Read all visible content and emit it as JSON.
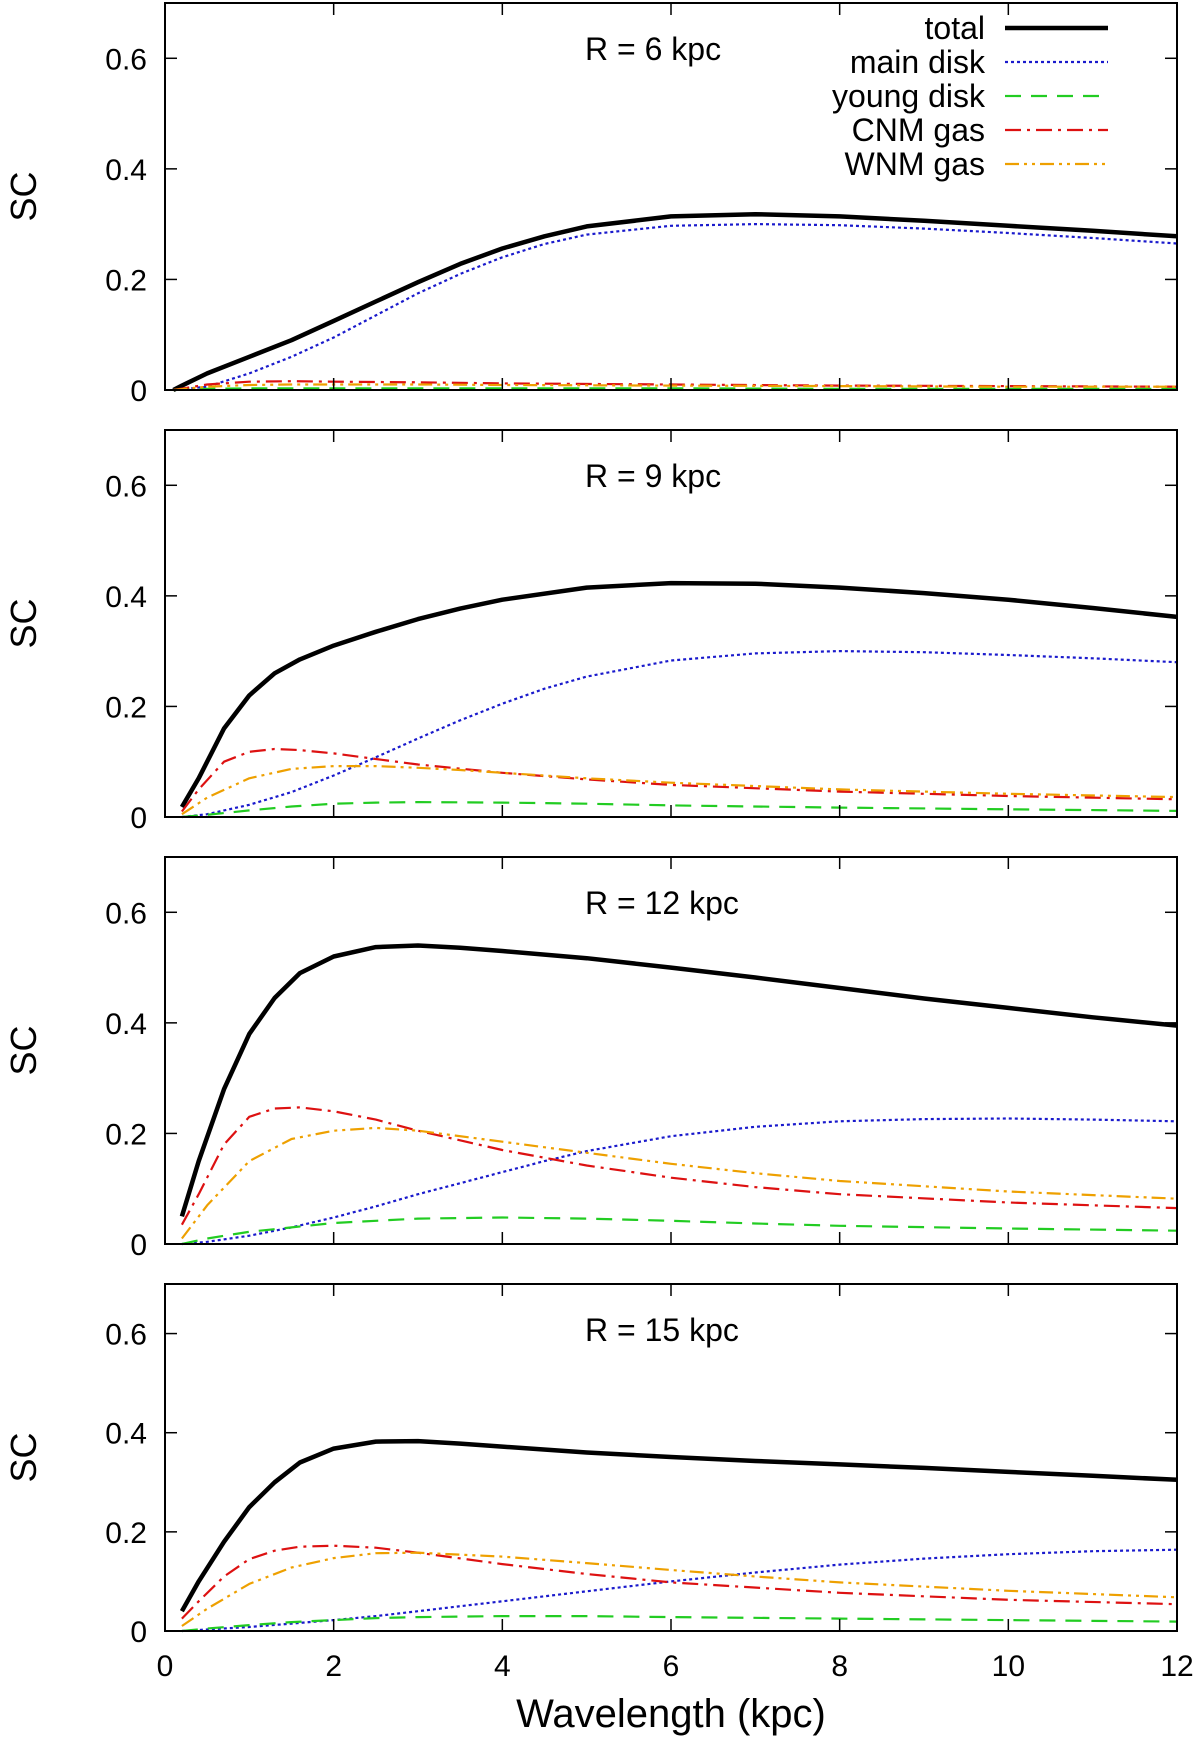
{
  "chart_data": {
    "type": "line",
    "layout": "4 stacked panels sharing x-axis",
    "xlabel": "Wavelength (kpc)",
    "ylabel": "SC",
    "xlim": [
      0,
      12
    ],
    "ylim": [
      0,
      0.7
    ],
    "x_ticks": [
      "0",
      "2",
      "4",
      "6",
      "8",
      "10",
      "12"
    ],
    "y_ticks": [
      "0",
      "0.2",
      "0.4",
      "0.6"
    ],
    "legend": {
      "placement": "top-right of first panel",
      "entries": [
        {
          "key": "total",
          "label": "total",
          "color": "#000000",
          "style": "solid-thick"
        },
        {
          "key": "main",
          "label": "main disk",
          "color": "#1a1acc",
          "style": "dotted"
        },
        {
          "key": "young",
          "label": "young disk",
          "color": "#22cc22",
          "style": "dashed"
        },
        {
          "key": "cnm",
          "label": "CNM gas",
          "color": "#dd1111",
          "style": "dash-dot"
        },
        {
          "key": "wnm",
          "label": "WNM gas",
          "color": "#eea000",
          "style": "dash-dot-dot"
        }
      ]
    },
    "panels": [
      {
        "title": "R = 6 kpc",
        "series": [
          {
            "key": "total",
            "x": [
              0.1,
              0.2,
              0.5,
              1,
              1.5,
              2,
              2.5,
              3,
              3.5,
              4,
              4.5,
              5,
              6,
              7,
              8,
              9,
              10,
              11,
              12
            ],
            "y": [
              0,
              0.008,
              0.03,
              0.06,
              0.09,
              0.125,
              0.16,
              0.195,
              0.228,
              0.256,
              0.278,
              0.296,
              0.314,
              0.318,
              0.314,
              0.306,
              0.297,
              0.288,
              0.278
            ]
          },
          {
            "key": "main",
            "x": [
              0.1,
              0.5,
              1,
              1.5,
              2,
              2.5,
              3,
              3.5,
              4,
              4.5,
              5,
              6,
              7,
              8,
              9,
              10,
              11,
              12
            ],
            "y": [
              0,
              0.006,
              0.03,
              0.06,
              0.095,
              0.135,
              0.175,
              0.21,
              0.24,
              0.264,
              0.281,
              0.297,
              0.3,
              0.298,
              0.292,
              0.284,
              0.275,
              0.265
            ]
          },
          {
            "key": "young",
            "x": [
              0.1,
              0.5,
              1,
              2,
              3,
              4,
              6,
              8,
              10,
              12
            ],
            "y": [
              0,
              0.002,
              0.003,
              0.003,
              0.003,
              0.003,
              0.003,
              0.002,
              0.002,
              0.002
            ]
          },
          {
            "key": "cnm",
            "x": [
              0.1,
              0.5,
              1,
              1.5,
              2,
              3,
              4,
              6,
              8,
              10,
              12
            ],
            "y": [
              0,
              0.01,
              0.015,
              0.016,
              0.015,
              0.014,
              0.012,
              0.01,
              0.008,
              0.007,
              0.006
            ]
          },
          {
            "key": "wnm",
            "x": [
              0.1,
              0.5,
              1,
              1.5,
              2,
              3,
              4,
              6,
              8,
              10,
              12
            ],
            "y": [
              0,
              0.006,
              0.009,
              0.01,
              0.01,
              0.01,
              0.009,
              0.008,
              0.007,
              0.006,
              0.006
            ]
          }
        ]
      },
      {
        "title": "R = 9 kpc",
        "series": [
          {
            "key": "total",
            "x": [
              0.2,
              0.4,
              0.7,
              1,
              1.3,
              1.6,
              2,
              2.5,
              3,
              3.5,
              4,
              5,
              6,
              7,
              8,
              9,
              10,
              11,
              12
            ],
            "y": [
              0.018,
              0.07,
              0.16,
              0.22,
              0.26,
              0.285,
              0.31,
              0.335,
              0.358,
              0.377,
              0.393,
              0.415,
              0.423,
              0.422,
              0.415,
              0.405,
              0.393,
              0.378,
              0.362
            ]
          },
          {
            "key": "main",
            "x": [
              0.2,
              0.5,
              1,
              1.5,
              2,
              2.5,
              3,
              3.5,
              4,
              4.5,
              5,
              6,
              7,
              8,
              9,
              10,
              11,
              12
            ],
            "y": [
              0,
              0.005,
              0.022,
              0.045,
              0.075,
              0.108,
              0.142,
              0.175,
              0.205,
              0.232,
              0.254,
              0.283,
              0.296,
              0.3,
              0.298,
              0.293,
              0.287,
              0.28
            ]
          },
          {
            "key": "young",
            "x": [
              0.2,
              0.5,
              1,
              1.5,
              2,
              2.5,
              3,
              4,
              5,
              6,
              8,
              10,
              12
            ],
            "y": [
              0,
              0.004,
              0.012,
              0.019,
              0.024,
              0.026,
              0.027,
              0.026,
              0.024,
              0.021,
              0.017,
              0.014,
              0.011
            ]
          },
          {
            "key": "cnm",
            "x": [
              0.2,
              0.4,
              0.7,
              1,
              1.3,
              1.6,
              2,
              2.5,
              3,
              4,
              5,
              6,
              8,
              10,
              12
            ],
            "y": [
              0.01,
              0.05,
              0.1,
              0.118,
              0.123,
              0.121,
              0.115,
              0.105,
              0.095,
              0.08,
              0.068,
              0.058,
              0.046,
              0.038,
              0.032
            ]
          },
          {
            "key": "wnm",
            "x": [
              0.2,
              0.5,
              1,
              1.5,
              2,
              2.5,
              3,
              3.5,
              4,
              5,
              6,
              8,
              10,
              12
            ],
            "y": [
              0.005,
              0.035,
              0.07,
              0.087,
              0.092,
              0.092,
              0.089,
              0.085,
              0.08,
              0.07,
              0.062,
              0.05,
              0.042,
              0.036
            ]
          }
        ]
      },
      {
        "title": "R = 12 kpc",
        "series": [
          {
            "key": "total",
            "x": [
              0.2,
              0.4,
              0.7,
              1,
              1.3,
              1.6,
              2,
              2.5,
              3,
              3.5,
              4,
              5,
              6,
              7,
              8,
              9,
              10,
              11,
              12
            ],
            "y": [
              0.05,
              0.15,
              0.28,
              0.38,
              0.445,
              0.49,
              0.52,
              0.537,
              0.54,
              0.536,
              0.53,
              0.517,
              0.5,
              0.482,
              0.463,
              0.444,
              0.427,
              0.41,
              0.395
            ]
          },
          {
            "key": "main",
            "x": [
              0.2,
              0.5,
              1,
              1.5,
              2,
              2.5,
              3,
              3.5,
              4,
              4.5,
              5,
              6,
              7,
              8,
              9,
              10,
              11,
              12
            ],
            "y": [
              0,
              0.004,
              0.015,
              0.03,
              0.048,
              0.068,
              0.09,
              0.11,
              0.13,
              0.15,
              0.168,
              0.195,
              0.212,
              0.222,
              0.226,
              0.227,
              0.225,
              0.222
            ]
          },
          {
            "key": "young",
            "x": [
              0.2,
              0.5,
              1,
              1.5,
              2,
              3,
              4,
              5,
              6,
              7,
              8,
              10,
              12
            ],
            "y": [
              0,
              0.01,
              0.022,
              0.03,
              0.038,
              0.046,
              0.048,
              0.046,
              0.042,
              0.037,
              0.033,
              0.028,
              0.024
            ]
          },
          {
            "key": "cnm",
            "x": [
              0.2,
              0.4,
              0.7,
              1,
              1.3,
              1.6,
              2,
              2.5,
              3,
              4,
              5,
              6,
              7,
              8,
              10,
              12
            ],
            "y": [
              0.035,
              0.09,
              0.18,
              0.23,
              0.245,
              0.247,
              0.24,
              0.225,
              0.205,
              0.17,
              0.142,
              0.12,
              0.103,
              0.09,
              0.075,
              0.065
            ]
          },
          {
            "key": "wnm",
            "x": [
              0.2,
              0.5,
              1,
              1.5,
              2,
              2.5,
              3,
              4,
              5,
              6,
              7,
              8,
              10,
              12
            ],
            "y": [
              0.01,
              0.07,
              0.15,
              0.19,
              0.205,
              0.21,
              0.205,
              0.185,
              0.165,
              0.145,
              0.128,
              0.114,
              0.095,
              0.082
            ]
          }
        ]
      },
      {
        "title": "R = 15 kpc",
        "series": [
          {
            "key": "total",
            "x": [
              0.2,
              0.4,
              0.7,
              1,
              1.3,
              1.6,
              2,
              2.5,
              3,
              3.5,
              4,
              5,
              6,
              7,
              8,
              9,
              10,
              11,
              12
            ],
            "y": [
              0.04,
              0.1,
              0.18,
              0.25,
              0.3,
              0.34,
              0.368,
              0.382,
              0.383,
              0.378,
              0.372,
              0.36,
              0.351,
              0.343,
              0.336,
              0.329,
              0.321,
              0.313,
              0.305
            ]
          },
          {
            "key": "main",
            "x": [
              0.2,
              0.5,
              1,
              1.5,
              2,
              2.5,
              3,
              3.5,
              4,
              4.5,
              5,
              6,
              7,
              8,
              9,
              10,
              11,
              12
            ],
            "y": [
              0,
              0.003,
              0.008,
              0.015,
              0.022,
              0.03,
              0.04,
              0.05,
              0.06,
              0.07,
              0.08,
              0.1,
              0.118,
              0.134,
              0.146,
              0.155,
              0.161,
              0.164
            ]
          },
          {
            "key": "young",
            "x": [
              0.2,
              0.5,
              1,
              1.5,
              2,
              2.5,
              3,
              4,
              5,
              6,
              8,
              10,
              12
            ],
            "y": [
              0,
              0.005,
              0.012,
              0.018,
              0.022,
              0.026,
              0.028,
              0.03,
              0.03,
              0.028,
              0.025,
              0.022,
              0.019
            ]
          },
          {
            "key": "cnm",
            "x": [
              0.2,
              0.4,
              0.7,
              1,
              1.3,
              1.6,
              2,
              2.5,
              3,
              4,
              5,
              6,
              8,
              10,
              12
            ],
            "y": [
              0.025,
              0.06,
              0.11,
              0.145,
              0.162,
              0.17,
              0.172,
              0.168,
              0.158,
              0.135,
              0.115,
              0.098,
              0.077,
              0.063,
              0.054
            ]
          },
          {
            "key": "wnm",
            "x": [
              0.2,
              0.5,
              1,
              1.5,
              2,
              2.5,
              3,
              4,
              5,
              6,
              7,
              8,
              10,
              12
            ],
            "y": [
              0.01,
              0.045,
              0.095,
              0.128,
              0.147,
              0.157,
              0.158,
              0.15,
              0.137,
              0.123,
              0.11,
              0.098,
              0.081,
              0.068
            ]
          }
        ]
      }
    ]
  }
}
